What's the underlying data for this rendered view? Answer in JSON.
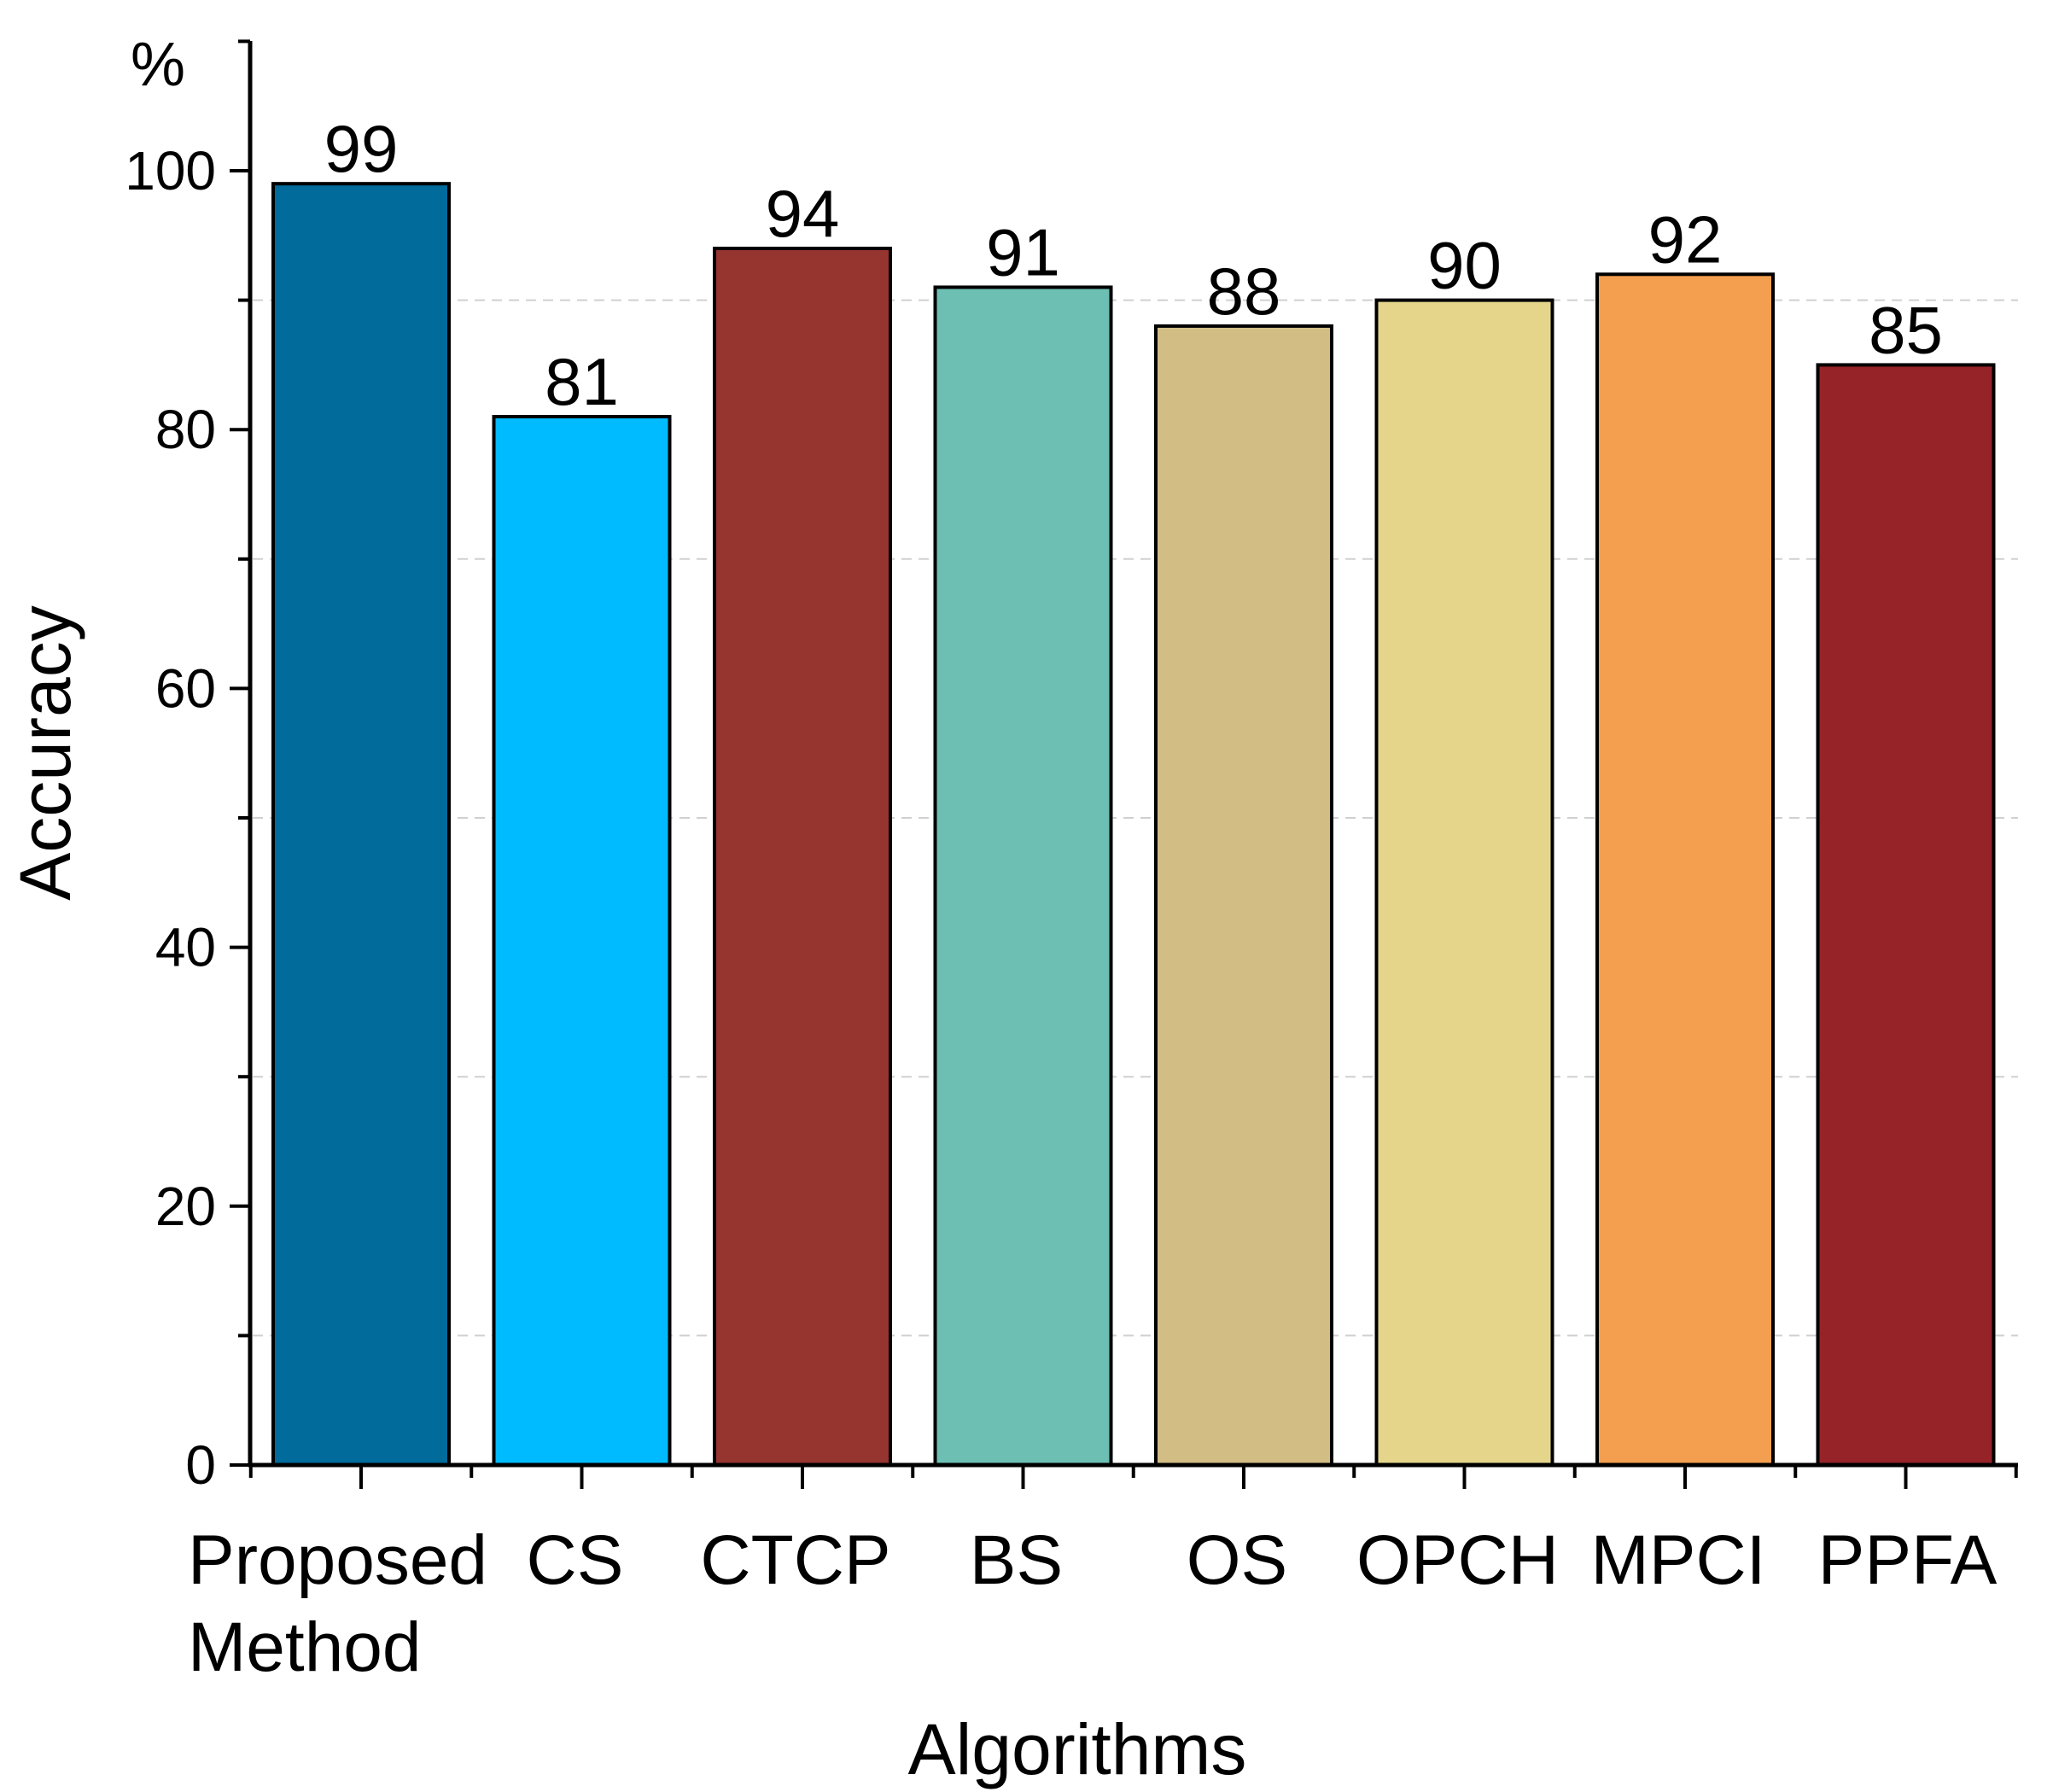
{
  "chart_data": {
    "type": "bar",
    "title": "",
    "xlabel": "Algorithms",
    "ylabel": "Accuracy",
    "y_unit": "%",
    "ylim": [
      0,
      110
    ],
    "yticks": [
      0,
      20,
      40,
      60,
      80,
      100
    ],
    "grid": "dashed horizontal",
    "categories": [
      [
        "Proposed",
        "Method"
      ],
      [
        "CS"
      ],
      [
        "CTCP"
      ],
      [
        "BS"
      ],
      [
        "OS"
      ],
      [
        "OPCH"
      ],
      [
        "MPCI"
      ],
      [
        "PPFA"
      ]
    ],
    "values": [
      99,
      81,
      94,
      91,
      88,
      90,
      92,
      85
    ],
    "colors": [
      "#016b9b",
      "#00bbff",
      "#963430",
      "#6dbfb3",
      "#d2bd85",
      "#e4d58b",
      "#f39f4f",
      "#952328"
    ]
  }
}
